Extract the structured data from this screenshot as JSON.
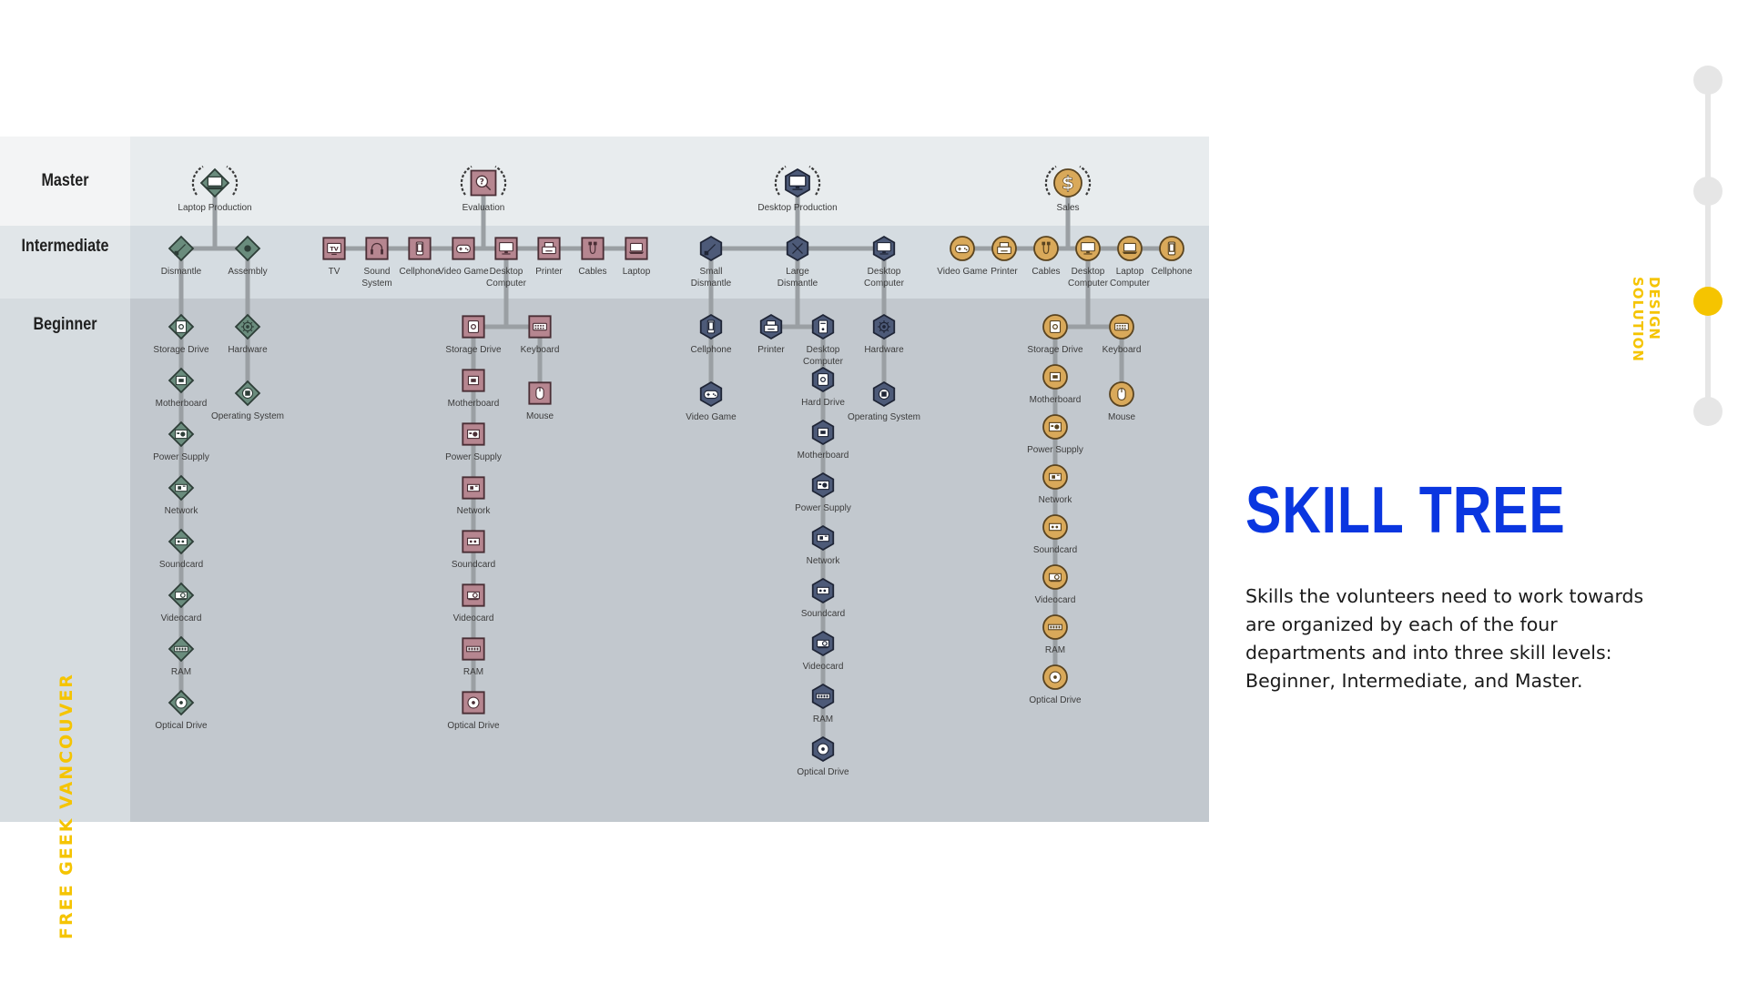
{
  "brand": "FREE GEEK VANCOUVER",
  "section": {
    "line1": "DESIGN",
    "line2": "SOLUTION"
  },
  "title": "SKILL TREE",
  "description": "Skills the volunteers need to work towards are organized by each of the four departments and into three skill levels: Beginner, Intermediate, and Master.",
  "colors": {
    "accent_yellow": "#f5c400",
    "title_blue": "#0a36e0",
    "timeline_gray": "#e6e6e6",
    "panel_master": "#e8ecee",
    "panel_intermediate": "#d5dce1",
    "panel_beginner": "#c2c8ce",
    "label_master": "#f3f4f5",
    "label_intermediate": "#e1e6e9",
    "label_beginner": "#d6dce0",
    "edge": "#9a9fa3"
  },
  "timeline": {
    "steps": 4,
    "active_index": 2
  },
  "levels": [
    "Master",
    "Intermediate",
    "Beginner"
  ],
  "departments": [
    {
      "id": "laptop",
      "style": {
        "shape": "diamond",
        "fill": "#6a8c7d",
        "inner": "#bfd6c8",
        "ring": "#2e3e38"
      },
      "master": {
        "label": "Laptop Production",
        "icon": "laptop-icon"
      },
      "intermediate": [
        {
          "label": "Dismantle",
          "icon": "screwdriver-icon"
        },
        {
          "label": "Assembly",
          "icon": "monitor-icon"
        }
      ],
      "beginner": [
        {
          "parent": "Dismantle",
          "items": [
            {
              "label": "Storage Drive",
              "icon": "drive-icon"
            },
            {
              "label": "Motherboard",
              "icon": "cpu-icon"
            },
            {
              "label": "Power Supply",
              "icon": "power-supply-icon"
            },
            {
              "label": "Network",
              "icon": "network-card-icon"
            },
            {
              "label": "Soundcard",
              "icon": "soundcard-icon"
            },
            {
              "label": "Videocard",
              "icon": "videocard-icon"
            },
            {
              "label": "RAM",
              "icon": "ram-icon"
            },
            {
              "label": "Optical Drive",
              "icon": "disc-icon"
            }
          ]
        },
        {
          "parent": "Assembly",
          "items": [
            {
              "label": "Hardware",
              "icon": "gear-icon"
            },
            {
              "label": "Operating System",
              "icon": "os-icon"
            }
          ]
        }
      ]
    },
    {
      "id": "evaluation",
      "style": {
        "shape": "square",
        "fill": "#b68690",
        "inner": "#f2d2d8",
        "ring": "#4a2e35"
      },
      "master": {
        "label": "Evaluation",
        "icon": "magnifier-icon"
      },
      "intermediate": [
        {
          "label": "TV",
          "icon": "tv-icon"
        },
        {
          "label": "Sound System",
          "icon": "headphones-icon"
        },
        {
          "label": "Cellphone",
          "icon": "cellphone-icon"
        },
        {
          "label": "Video Game",
          "icon": "gamepad-icon"
        },
        {
          "label": "Desktop Computer",
          "icon": "desktop-icon"
        },
        {
          "label": "Printer",
          "icon": "printer-icon"
        },
        {
          "label": "Cables",
          "icon": "cables-icon"
        },
        {
          "label": "Laptop",
          "icon": "laptop-icon"
        }
      ],
      "beginner": [
        {
          "parent": "Desktop Computer",
          "items": [
            {
              "label": "Storage Drive",
              "icon": "drive-icon"
            },
            {
              "label": "Motherboard",
              "icon": "cpu-icon"
            },
            {
              "label": "Power Supply",
              "icon": "power-supply-icon"
            },
            {
              "label": "Network",
              "icon": "network-card-icon"
            },
            {
              "label": "Soundcard",
              "icon": "soundcard-icon"
            },
            {
              "label": "Videocard",
              "icon": "videocard-icon"
            },
            {
              "label": "RAM",
              "icon": "ram-icon"
            },
            {
              "label": "Optical Drive",
              "icon": "disc-icon"
            }
          ]
        },
        {
          "parent": "Desktop Computer",
          "items": [
            {
              "label": "Keyboard",
              "icon": "keyboard-icon"
            },
            {
              "label": "Mouse",
              "icon": "mouse-icon"
            }
          ]
        }
      ]
    },
    {
      "id": "desktop",
      "style": {
        "shape": "hexagon",
        "fill": "#4d5a78",
        "inner": "#b9c4dc",
        "ring": "#1f2536"
      },
      "master": {
        "label": "Desktop Production",
        "icon": "desktop-icon"
      },
      "intermediate": [
        {
          "label": "Small Dismantle",
          "icon": "screwdriver-icon"
        },
        {
          "label": "Large Dismantle",
          "icon": "tools-icon"
        },
        {
          "label": "Desktop Computer",
          "icon": "desktop-icon"
        }
      ],
      "beginner": [
        {
          "parent": "Small Dismantle",
          "items": [
            {
              "label": "Cellphone",
              "icon": "cellphone-icon"
            },
            {
              "label": "Video Game",
              "icon": "gamepad-icon"
            }
          ]
        },
        {
          "parent": "Large Dismantle",
          "items": [
            {
              "label": "Printer",
              "icon": "printer-icon"
            }
          ]
        },
        {
          "parent": "Large Dismantle",
          "items": [
            {
              "label": "Desktop Computer",
              "icon": "tower-icon"
            },
            {
              "label": "Hard Drive",
              "icon": "drive-icon"
            },
            {
              "label": "Motherboard",
              "icon": "cpu-icon"
            },
            {
              "label": "Power Supply",
              "icon": "power-supply-icon"
            },
            {
              "label": "Network",
              "icon": "network-card-icon"
            },
            {
              "label": "Soundcard",
              "icon": "soundcard-icon"
            },
            {
              "label": "Videocard",
              "icon": "videocard-icon"
            },
            {
              "label": "RAM",
              "icon": "ram-icon"
            },
            {
              "label": "Optical Drive",
              "icon": "disc-icon"
            }
          ]
        },
        {
          "parent": "Desktop Computer",
          "items": [
            {
              "label": "Hardware",
              "icon": "gear-icon"
            },
            {
              "label": "Operating System",
              "icon": "os-icon"
            }
          ]
        }
      ]
    },
    {
      "id": "sales",
      "style": {
        "shape": "circle",
        "fill": "#d9a95a",
        "inner": "#f4ddb0",
        "ring": "#5a4420"
      },
      "master": {
        "label": "Sales",
        "icon": "dollar-icon"
      },
      "intermediate": [
        {
          "label": "Video Game",
          "icon": "gamepad-icon"
        },
        {
          "label": "Printer",
          "icon": "printer-icon"
        },
        {
          "label": "Cables",
          "icon": "cables-icon"
        },
        {
          "label": "Desktop Computer",
          "icon": "desktop-icon"
        },
        {
          "label": "Laptop Computer",
          "icon": "laptop-icon"
        },
        {
          "label": "Cellphone",
          "icon": "cellphone-icon"
        }
      ],
      "beginner": [
        {
          "parent": "Desktop Computer",
          "items": [
            {
              "label": "Storage Drive",
              "icon": "drive-icon"
            },
            {
              "label": "Motherboard",
              "icon": "cpu-icon"
            },
            {
              "label": "Power Supply",
              "icon": "power-supply-icon"
            },
            {
              "label": "Network",
              "icon": "network-card-icon"
            },
            {
              "label": "Soundcard",
              "icon": "soundcard-icon"
            },
            {
              "label": "Videocard",
              "icon": "videocard-icon"
            },
            {
              "label": "RAM",
              "icon": "ram-icon"
            },
            {
              "label": "Optical Drive",
              "icon": "disc-icon"
            }
          ]
        },
        {
          "parent": "Desktop Computer",
          "items": [
            {
              "label": "Keyboard",
              "icon": "keyboard-icon"
            },
            {
              "label": "Mouse",
              "icon": "mouse-icon"
            }
          ]
        }
      ]
    }
  ]
}
